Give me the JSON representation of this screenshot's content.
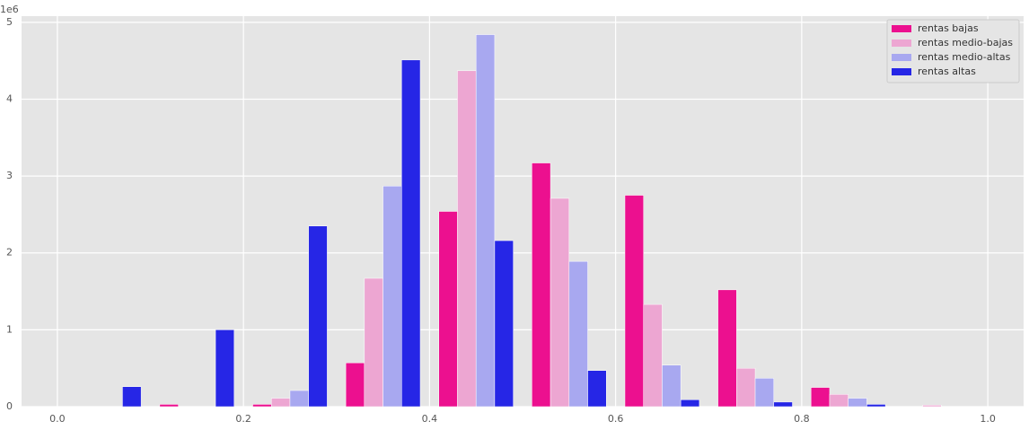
{
  "chart_data": {
    "type": "histogram",
    "y_offset_label": "1e6",
    "bins": [
      0,
      0.1,
      0.2,
      0.3,
      0.4,
      0.5,
      0.6,
      0.7,
      0.8,
      0.9,
      1.0
    ],
    "series": [
      {
        "name": "rentas bajas",
        "color": "#ec108f",
        "values": [
          0,
          0.03,
          0.03,
          0.57,
          2.54,
          3.17,
          2.75,
          1.52,
          0.25,
          0
        ]
      },
      {
        "name": "rentas medio-bajas",
        "color": "#eda6d2",
        "values": [
          0,
          0,
          0.11,
          1.67,
          4.37,
          2.71,
          1.33,
          0.5,
          0.16,
          0.02
        ]
      },
      {
        "name": "rentas medio-altas",
        "color": "#a8a8f0",
        "values": [
          0,
          0,
          0.21,
          2.87,
          4.84,
          1.89,
          0.54,
          0.37,
          0.11,
          0
        ]
      },
      {
        "name": "rentas altas",
        "color": "#2626e6",
        "values": [
          0.26,
          1.0,
          2.35,
          4.51,
          2.16,
          0.47,
          0.09,
          0.06,
          0.03,
          0
        ]
      }
    ],
    "xlim": [
      -0.0385,
      1.0385
    ],
    "ylim": [
      0,
      5.08
    ],
    "xticks": [
      {
        "value": 0,
        "label": "0.0"
      },
      0.2,
      0.4,
      0.6,
      0.8,
      {
        "value": 1.0,
        "label": "1.0"
      }
    ],
    "yticks": [
      0,
      1,
      2,
      3,
      4,
      5
    ],
    "grid": true,
    "legend": "upper right"
  }
}
